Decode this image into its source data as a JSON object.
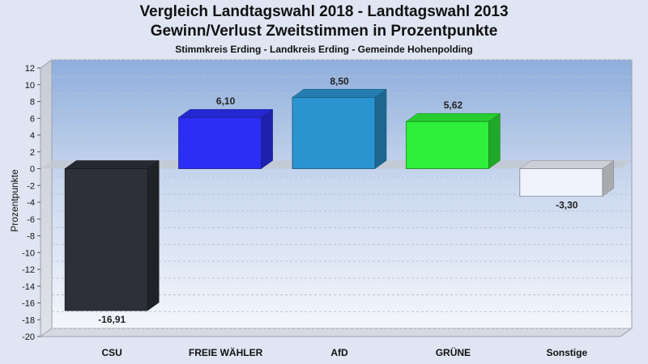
{
  "title": "Vergleich Landtagswahl 2018 - Landtagswahl 2013",
  "subtitle": "Gewinn/Verlust Zweitstimmen in Prozentpunkte",
  "subsubtitle": "Stimmkreis Erding - Landkreis Erding - Gemeinde Hohenpolding",
  "chart_data": {
    "type": "bar",
    "categories": [
      "CSU",
      "FREIE WÄHLER",
      "AfD",
      "GRÜNE",
      "Sonstige"
    ],
    "values": [
      -16.91,
      6.1,
      8.5,
      5.62,
      -3.3
    ],
    "value_labels": [
      "-16,91",
      "6,10",
      "8,50",
      "5,62",
      "-3,30"
    ],
    "colors": [
      "#2d3038",
      "#2b2ff5",
      "#2a94d0",
      "#2ef03a",
      "#f0f3fb"
    ],
    "ylabel": "Prozentpunkte",
    "ylim": [
      -20,
      12
    ],
    "yticks": [
      12,
      10,
      8,
      6,
      4,
      2,
      0,
      -2,
      -4,
      -6,
      -8,
      -10,
      -12,
      -14,
      -16,
      -18,
      -20
    ],
    "grid": true
  }
}
